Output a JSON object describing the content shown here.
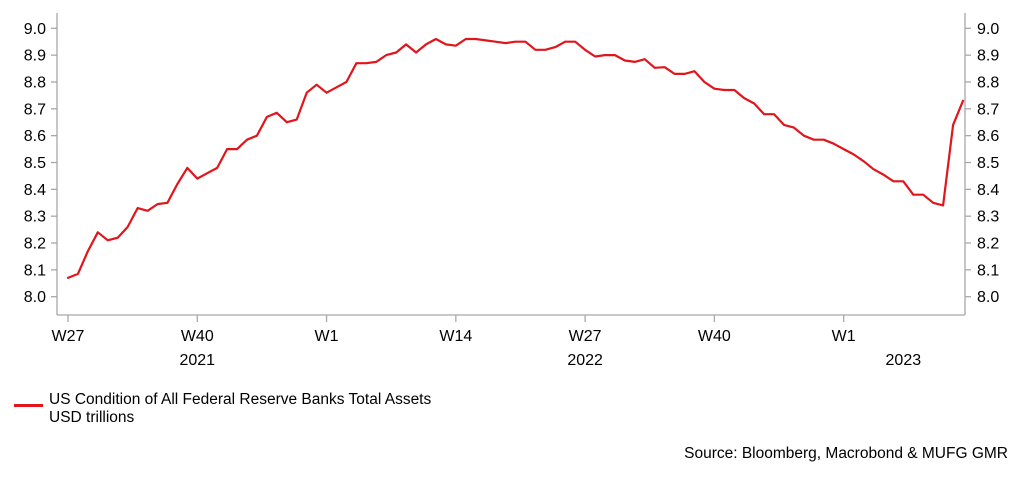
{
  "chart_data": {
    "type": "line",
    "title": "",
    "grid": false,
    "legend_position": "bottom-left",
    "axis_color": "#a8a8a8",
    "ylim": [
      8.0,
      9.0
    ],
    "y_ticks": [
      8.0,
      8.1,
      8.2,
      8.3,
      8.4,
      8.5,
      8.6,
      8.7,
      8.8,
      8.9,
      9.0
    ],
    "y_tick_decimals": 1,
    "y_axis_sides": [
      "left",
      "right"
    ],
    "x_axis": {
      "tick_labels": [
        {
          "label": "W27",
          "index": 0
        },
        {
          "label": "W40",
          "index": 13
        },
        {
          "label": "W1",
          "index": 26
        },
        {
          "label": "W14",
          "index": 39
        },
        {
          "label": "W27",
          "index": 52
        },
        {
          "label": "W40",
          "index": 65
        },
        {
          "label": "W1",
          "index": 78
        }
      ],
      "year_labels": [
        {
          "label": "2021",
          "index": 13
        },
        {
          "label": "2022",
          "index": 52
        },
        {
          "label": "2023",
          "index": 84
        }
      ]
    },
    "series": [
      {
        "name": "US Condition of All Federal Reserve Banks Total Assets",
        "unit": "USD trillions",
        "color": "#e0161c",
        "values": [
          8.07,
          8.085,
          8.17,
          8.24,
          8.21,
          8.22,
          8.26,
          8.33,
          8.32,
          8.345,
          8.35,
          8.42,
          8.48,
          8.44,
          8.46,
          8.48,
          8.55,
          8.55,
          8.585,
          8.6,
          8.67,
          8.685,
          8.65,
          8.66,
          8.76,
          8.79,
          8.76,
          8.78,
          8.8,
          8.87,
          8.87,
          8.875,
          8.9,
          8.91,
          8.94,
          8.91,
          8.94,
          8.96,
          8.94,
          8.935,
          8.96,
          8.96,
          8.955,
          8.95,
          8.945,
          8.95,
          8.95,
          8.92,
          8.92,
          8.93,
          8.95,
          8.95,
          8.92,
          8.895,
          8.9,
          8.9,
          8.88,
          8.875,
          8.885,
          8.853,
          8.855,
          8.83,
          8.83,
          8.84,
          8.8,
          8.775,
          8.77,
          8.77,
          8.74,
          8.72,
          8.68,
          8.68,
          8.64,
          8.63,
          8.6,
          8.585,
          8.585,
          8.57,
          8.55,
          8.53,
          8.505,
          8.475,
          8.455,
          8.43,
          8.43,
          8.38,
          8.38,
          8.35,
          8.34,
          8.64,
          8.73
        ]
      }
    ]
  },
  "source": {
    "text": "Source: Bloomberg, Macrobond & MUFG GMR"
  }
}
